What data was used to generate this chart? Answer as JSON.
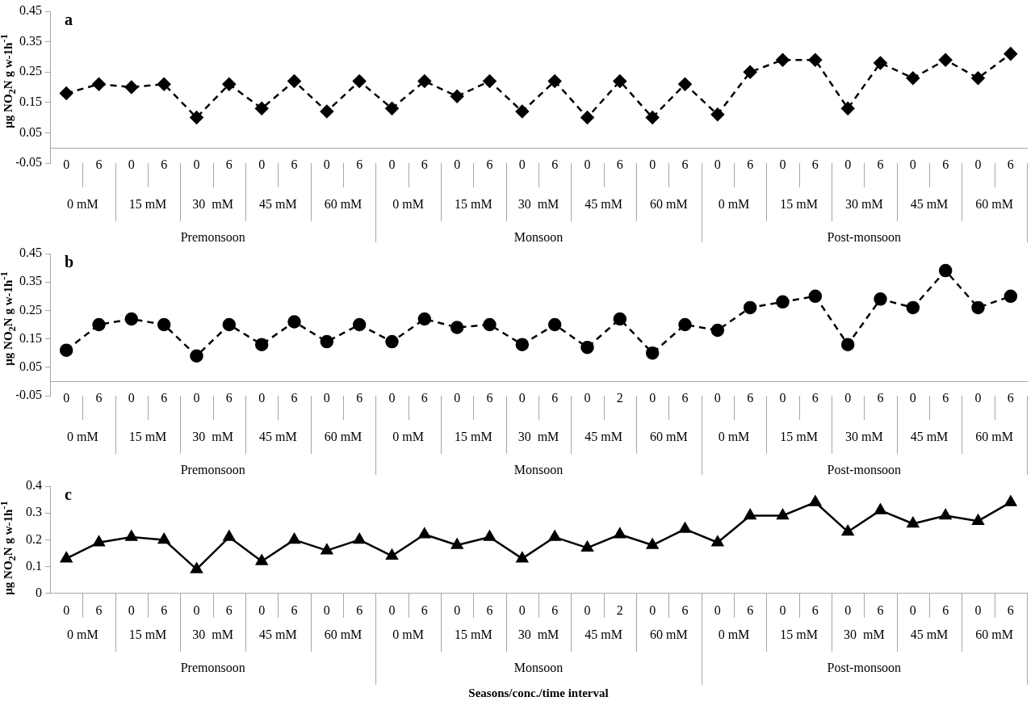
{
  "chart_data": [
    {
      "type": "line",
      "title": "a",
      "ylabel": "µg NO$_{2}$N g w-1h$^{-1}$",
      "marker": "diamond",
      "line_style": "dashed",
      "categories": [
        "0",
        "6",
        "0",
        "6",
        "0",
        "6",
        "0",
        "6",
        "0",
        "6",
        "0",
        "6",
        "0",
        "6",
        "0",
        "6",
        "0",
        "6",
        "0",
        "6",
        "0",
        "6",
        "0",
        "6",
        "0",
        "6",
        "0",
        "6",
        "0",
        "6"
      ],
      "annotations": [
        "0 mM",
        "15 mM",
        "30  mM",
        "45 mM",
        "60 mM",
        "0 mM",
        "15 mM",
        "30  mM",
        "45 mM",
        "60 mM",
        "0 mM",
        "15 mM",
        "30 mM",
        "45 mM",
        "60 mM",
        "Premonsoon",
        "Monsoon",
        "Post-monsoon"
      ],
      "ylim": [
        -0.05,
        0.45
      ],
      "yticks": [
        -0.05,
        0.05,
        0.15,
        0.25,
        0.35,
        0.45
      ],
      "series": [
        {
          "color": "#000000",
          "values": [
            0.18,
            0.21,
            0.2,
            0.21,
            0.1,
            0.21,
            0.13,
            0.22,
            0.12,
            0.22,
            0.13,
            0.22,
            0.17,
            0.22,
            0.12,
            0.22,
            0.1,
            0.22,
            0.1,
            0.21,
            0.11,
            0.25,
            0.29,
            0.29,
            0.13,
            0.28,
            0.23,
            0.29,
            0.23,
            0.31
          ]
        }
      ]
    },
    {
      "type": "line",
      "title": "b",
      "ylabel": "µg NO$_{2}$N g w-1h$^{-1}$",
      "marker": "circle",
      "line_style": "dashed",
      "categories": [
        "0",
        "6",
        "0",
        "6",
        "0",
        "6",
        "0",
        "6",
        "0",
        "6",
        "0",
        "6",
        "0",
        "6",
        "0",
        "6",
        "0",
        "2",
        "0",
        "6",
        "0",
        "6",
        "0",
        "6",
        "0",
        "6",
        "0",
        "6",
        "0",
        "6"
      ],
      "annotations": [
        "0 mM",
        "15 mM",
        "30  mM",
        "45 mM",
        "60 mM",
        "0 mM",
        "15 mM",
        "30  mM",
        "45 mM",
        "60 mM",
        "0 mM",
        "15 mM",
        "30 mM",
        "45 mM",
        "60 mM",
        "Premonsoon",
        "Monsoon",
        "Post-monsoon"
      ],
      "ylim": [
        -0.05,
        0.45
      ],
      "yticks": [
        -0.05,
        0.05,
        0.15,
        0.25,
        0.35,
        0.45
      ],
      "series": [
        {
          "color": "#000000",
          "values": [
            0.11,
            0.2,
            0.22,
            0.2,
            0.09,
            0.2,
            0.13,
            0.21,
            0.14,
            0.2,
            0.14,
            0.22,
            0.19,
            0.2,
            0.13,
            0.2,
            0.12,
            0.22,
            0.1,
            0.2,
            0.18,
            0.26,
            0.28,
            0.3,
            0.13,
            0.29,
            0.26,
            0.39,
            0.26,
            0.3
          ]
        }
      ]
    },
    {
      "type": "line",
      "title": "c",
      "ylabel": "µg NO$_{2}$N g w-1h$^{-1}$",
      "xlabel": "Seasons/conc./time interval",
      "marker": "triangle",
      "line_style": "solid",
      "categories": [
        "0",
        "6",
        "0",
        "6",
        "0",
        "6",
        "0",
        "6",
        "0",
        "6",
        "0",
        "6",
        "0",
        "6",
        "0",
        "6",
        "0",
        "2",
        "0",
        "6",
        "0",
        "6",
        "0",
        "6",
        "0",
        "6",
        "0",
        "6",
        "0",
        "6"
      ],
      "annotations": [
        "0 mM",
        "15 mM",
        "30  mM",
        "45 mM",
        "60 mM",
        "0 mM",
        "15 mM",
        "30  mM",
        "45 mM",
        "60 mM",
        "0 mM",
        "15 mM",
        "30  mM",
        "45 mM",
        "60 mM",
        "Premonsoon",
        "Monsoon",
        "Post-monsoon"
      ],
      "ylim": [
        0,
        0.4
      ],
      "yticks": [
        0,
        0.1,
        0.2,
        0.3,
        0.4
      ],
      "series": [
        {
          "color": "#000000",
          "values": [
            0.13,
            0.19,
            0.21,
            0.2,
            0.09,
            0.21,
            0.12,
            0.2,
            0.16,
            0.2,
            0.14,
            0.22,
            0.18,
            0.21,
            0.13,
            0.21,
            0.17,
            0.22,
            0.18,
            0.24,
            0.19,
            0.29,
            0.29,
            0.34,
            0.23,
            0.31,
            0.26,
            0.29,
            0.27,
            0.34
          ]
        }
      ]
    }
  ]
}
